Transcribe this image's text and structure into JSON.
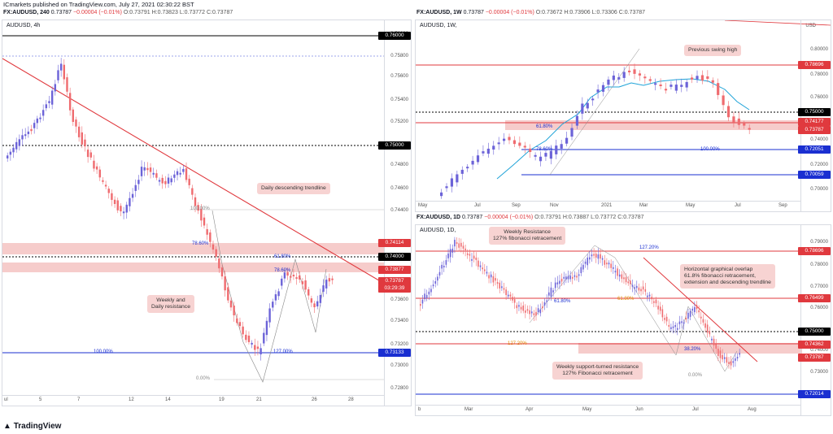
{
  "header": "ICmarkets published on TradingView.com, July 27, 2021 02:30:22 BST",
  "footer": {
    "logo": "TradingView"
  },
  "currency": "USD",
  "left": {
    "symbol": "FX:AUDUSD, 240",
    "values": {
      "close": "0.73787",
      "change": "−0.00004 (−0.01%)",
      "o": "O:0.73791",
      "h": "H:0.73823",
      "l": "L:0.73772",
      "c": "C:0.73787"
    },
    "title": "AUDUSD, 4h",
    "ticks": [
      "0.76000",
      "0.75800",
      "0.75600",
      "0.75400",
      "0.75200",
      "0.74800",
      "0.74600",
      "0.74400",
      "0.73600",
      "0.73400",
      "0.73200",
      "0.73000",
      "0.72800"
    ],
    "price_labels": {
      "p1": "0.76000",
      "p2": "0.75000",
      "p3": "0.74114",
      "p4": "0.74000",
      "p5": "0.73877",
      "p6": "0.73787",
      "p7": "03:29:39",
      "p8": "0.73133"
    },
    "x_ticks": [
      "ul",
      "5",
      "7",
      "12",
      "14",
      "19",
      "21",
      "26",
      "28"
    ],
    "annotations": {
      "trend": "Daily descending trendline",
      "res1": "Weekly and",
      "res2": "Daily resistance"
    },
    "fib": {
      "f1": "100.00%",
      "f2": "78.60%",
      "f3": "61.80%",
      "f4": "78.60%",
      "f5": "100.00%",
      "f6": "127.00%",
      "f7": "0.00%"
    }
  },
  "topright": {
    "symbol": "FX:AUDUSD, 1W",
    "values": {
      "close": "0.73787",
      "change": "−0.00004 (−0.01%)",
      "o": "O:0.73672",
      "h": "H:0.73906",
      "l": "L:0.73306",
      "c": "C:0.73787"
    },
    "title": "AUDUSD, 1W,",
    "ticks": [
      "0.80000",
      "0.78000",
      "0.76000",
      "0.74000",
      "0.72000",
      "0.70000"
    ],
    "price_labels": {
      "p1": "0.78696",
      "p2": "0.75000",
      "p3": "0.74177",
      "p4": "0.73787",
      "p5": "0.72051",
      "p6": "0.70059"
    },
    "x_ticks": [
      "May",
      "Jul",
      "Sep",
      "Nov",
      "2021",
      "Mar",
      "May",
      "Jul",
      "Sep"
    ],
    "annotations": {
      "swing": "Previous swing high"
    },
    "fib": {
      "f1": "61.80%",
      "f2": "78.60%",
      "f3": "100.00%"
    }
  },
  "bottomright": {
    "symbol": "FX:AUDUSD, 1D",
    "values": {
      "close": "0.73787",
      "change": "−0.00004 (−0.01%)",
      "o": "O:0.73791",
      "h": "H:0.73887",
      "l": "L:0.73772",
      "c": "C:0.73787"
    },
    "title": "AUDUSD, 1D,",
    "ticks": [
      "0.79000",
      "0.78000",
      "0.77000",
      "0.76000",
      "0.74000",
      "0.73000"
    ],
    "price_labels": {
      "p1": "0.78696",
      "p2": "0.76499",
      "p3": "0.75000",
      "p4": "0.74362",
      "p5": "0.73787",
      "p6": "0.72014"
    },
    "x_ticks": [
      "b",
      "Mar",
      "Apr",
      "May",
      "Jun",
      "Jul",
      "Aug"
    ],
    "annotations": {
      "weekly1": "Weekly Resistance",
      "weekly2": "127% fibonacci retracement",
      "horiz1": "Horizontal graphical overlap",
      "horiz2": "61.8% fibonacci retracement,",
      "horiz3": "extension and descending trendline",
      "support1": "Weekly support-turned resistance",
      "support2": "127% Fibonacci retracement"
    },
    "fib": {
      "f1": "127.20%",
      "f2": "61.80%",
      "f3": "61.80%",
      "f4": "127.20%",
      "f5": "38.20%",
      "f6": "0.00%"
    }
  },
  "colors": {
    "up": "#6c63d8",
    "down": "#ef6b6f",
    "zone": "#f4c3c2",
    "trend": "#e0393e",
    "blue": "#1a2fd1",
    "black": "#000000"
  }
}
